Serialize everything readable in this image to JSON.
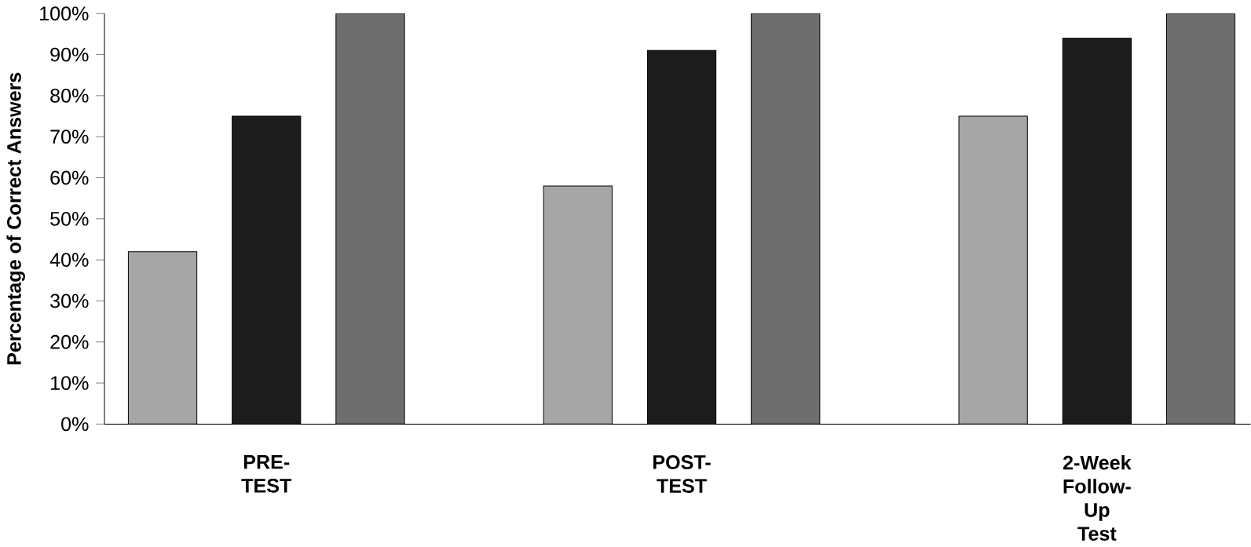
{
  "chart_data": {
    "type": "bar",
    "ylabel": "Percentage of Correct Answers",
    "categories": [
      "PRE-TEST",
      "POST-TEST",
      "2-Week Follow-Up Test"
    ],
    "series": [
      {
        "color": "#a6a6a6",
        "values": [
          42,
          58,
          75
        ]
      },
      {
        "color": "#1c1c1c",
        "values": [
          75,
          91,
          94
        ]
      },
      {
        "color": "#6e6e6e",
        "values": [
          100,
          100,
          100
        ]
      }
    ],
    "ylim": [
      0,
      100
    ],
    "yticks": [
      {
        "value": 0,
        "label": "0%"
      },
      {
        "value": 10,
        "label": "10%"
      },
      {
        "value": 20,
        "label": "20%"
      },
      {
        "value": 30,
        "label": "30%"
      },
      {
        "value": 40,
        "label": "40%"
      },
      {
        "value": 50,
        "label": "50%"
      },
      {
        "value": 60,
        "label": "60%"
      },
      {
        "value": 70,
        "label": "70%"
      },
      {
        "value": 80,
        "label": "80%"
      },
      {
        "value": 90,
        "label": "90%"
      },
      {
        "value": 100,
        "label": "100%"
      }
    ],
    "grid": false
  }
}
